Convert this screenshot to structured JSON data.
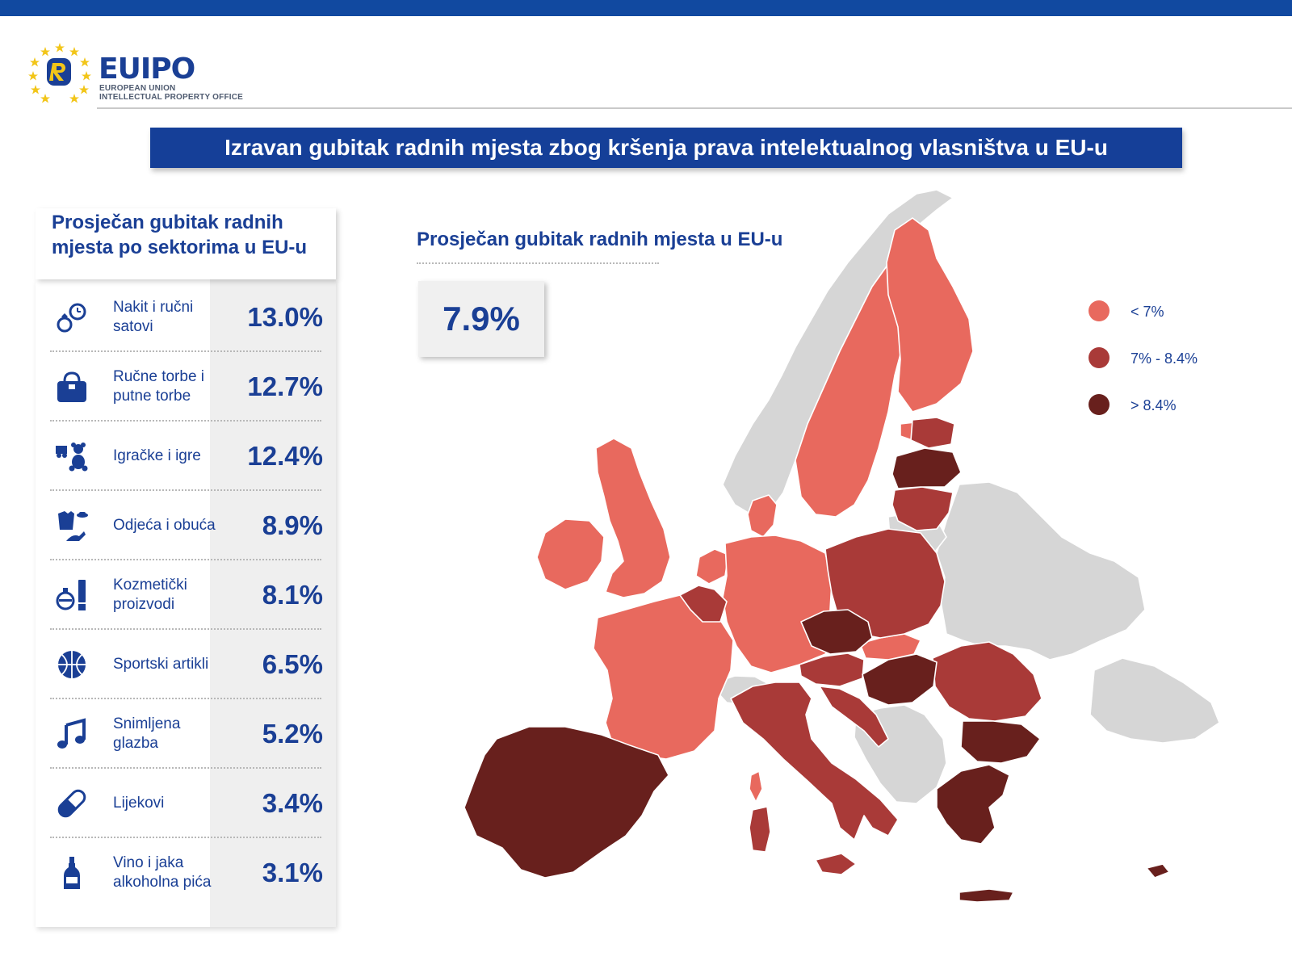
{
  "header": {
    "logo_word_eu": "EU",
    "logo_word_ipo": "IPO",
    "logo_subline_1": "EUROPEAN UNION",
    "logo_subline_2": "INTELLECTUAL PROPERTY OFFICE",
    "title": "Izravan gubitak radnih mjesta zbog kršenja prava intelektualnog vlasništva u EU-u"
  },
  "sectors_panel": {
    "title": "Prosječan gubitak radnih mjesta po sektorima u EU-u",
    "items": [
      {
        "icon": "watch-ring-icon",
        "label": "Nakit i ručni satovi",
        "value": "13.0%",
        "value_num": 13.0
      },
      {
        "icon": "handbag-icon",
        "label": "Ručne torbe i putne torbe",
        "value": "12.7%",
        "value_num": 12.7
      },
      {
        "icon": "toys-icon",
        "label": "Igračke i igre",
        "value": "12.4%",
        "value_num": 12.4
      },
      {
        "icon": "clothing-icon",
        "label": "Odjeća i obuća",
        "value": "8.9%",
        "value_num": 8.9
      },
      {
        "icon": "cosmetics-icon",
        "label": "Kozmetički proizvodi",
        "value": "8.1%",
        "value_num": 8.1
      },
      {
        "icon": "basketball-icon",
        "label": "Sportski artikli",
        "value": "6.5%",
        "value_num": 6.5
      },
      {
        "icon": "music-note-icon",
        "label": "Snimljena glazba",
        "value": "5.2%",
        "value_num": 5.2
      },
      {
        "icon": "pill-icon",
        "label": "Lijekovi",
        "value": "3.4%",
        "value_num": 3.4
      },
      {
        "icon": "bottle-icon",
        "label": "Vino i jaka alkoholna pića",
        "value": "3.1%",
        "value_num": 3.1
      }
    ]
  },
  "map": {
    "title": "Prosječan gubitak radnih mjesta u EU-u",
    "eu_average": "7.9%",
    "legend": [
      {
        "label": "< 7%",
        "color": "#e8695e"
      },
      {
        "label": "7% - 8.4%",
        "color": "#a93a38"
      },
      {
        "label": "> 8.4%",
        "color": "#68201d"
      }
    ],
    "non_eu_color": "#d6d6d6"
  }
}
